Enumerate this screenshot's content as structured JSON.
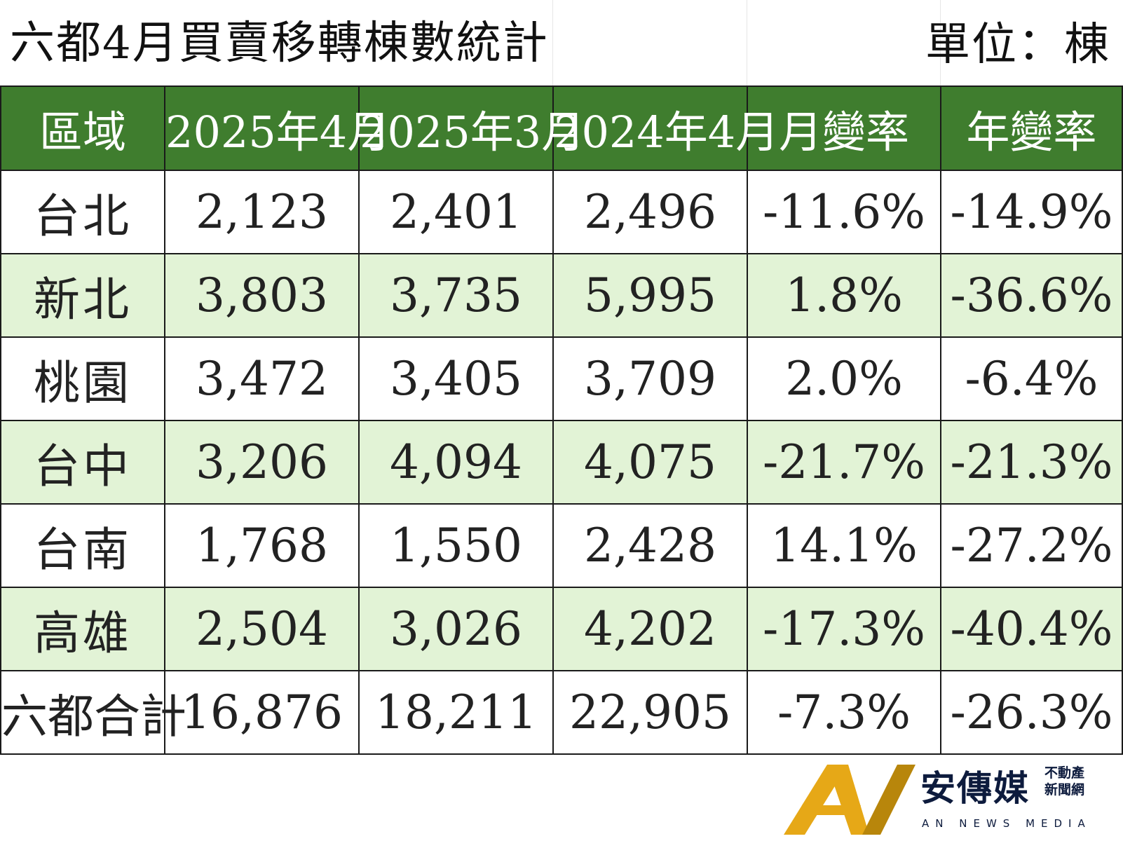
{
  "title": "六都4月買賣移轉棟數統計",
  "unit": "單位：棟",
  "table": {
    "headers": [
      "區域",
      "2025年4月",
      "2025年3月",
      "2024年4月",
      "月變率",
      "年變率"
    ],
    "rows": [
      {
        "region": "台北",
        "apr2025": "2,123",
        "mar2025": "2,401",
        "apr2024": "2,496",
        "mom": "-11.6%",
        "yoy": "-14.9%"
      },
      {
        "region": "新北",
        "apr2025": "3,803",
        "mar2025": "3,735",
        "apr2024": "5,995",
        "mom": "1.8%",
        "yoy": "-36.6%"
      },
      {
        "region": "桃園",
        "apr2025": "3,472",
        "mar2025": "3,405",
        "apr2024": "3,709",
        "mom": "2.0%",
        "yoy": "-6.4%"
      },
      {
        "region": "台中",
        "apr2025": "3,206",
        "mar2025": "4,094",
        "apr2024": "4,075",
        "mom": "-21.7%",
        "yoy": "-21.3%"
      },
      {
        "region": "台南",
        "apr2025": "1,768",
        "mar2025": "1,550",
        "apr2024": "2,428",
        "mom": "14.1%",
        "yoy": "-27.2%"
      },
      {
        "region": "高雄",
        "apr2025": "2,504",
        "mar2025": "3,026",
        "apr2024": "4,202",
        "mom": "-17.3%",
        "yoy": "-40.4%"
      },
      {
        "region": "六都合計",
        "apr2025": "16,876",
        "mar2025": "18,211",
        "apr2024": "22,905",
        "mom": "-7.3%",
        "yoy": "-26.3%"
      }
    ]
  },
  "colors": {
    "header_bg": "#3f7d2e",
    "header_text": "#ffffff",
    "alt_row_bg": "#e2f3d6",
    "negative_text": "#e0182d",
    "logo_gold": "#e6a817",
    "logo_navy": "#0d1b3d"
  },
  "logo": {
    "brand": "安傳媒",
    "sub_line1": "不動產",
    "sub_line2": "新聞網",
    "english": "AN NEWS MEDIA"
  }
}
